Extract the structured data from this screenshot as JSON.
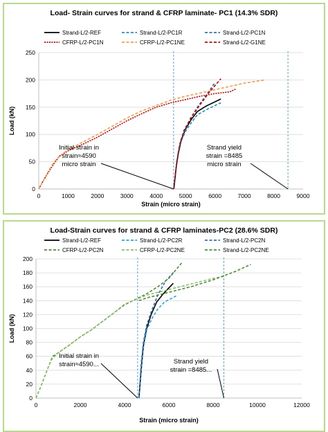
{
  "chart_data": [
    {
      "type": "line",
      "title": "Load- Strain curves  for strand & CFRP laminate- PC1 (14.3% SDR)",
      "xlabel": "Strain (micro strain)",
      "ylabel": "Load (kN)",
      "xlim": [
        0,
        9000
      ],
      "ylim": [
        0,
        250
      ],
      "xticks": [
        0,
        1000,
        2000,
        3000,
        4000,
        5000,
        6000,
        7000,
        8000,
        9000
      ],
      "yticks": [
        0,
        50,
        100,
        150,
        200,
        250
      ],
      "grid": "horizontal",
      "legend": "top, 3 columns",
      "series": [
        {
          "name": "Strand-L/2-REF",
          "color": "#000000",
          "dash": "solid",
          "x": [
            4600,
            4680,
            4750,
            4850,
            5000,
            5200,
            5400,
            5700,
            6200
          ],
          "y": [
            0,
            40,
            65,
            90,
            110,
            128,
            142,
            152,
            165
          ]
        },
        {
          "name": "Strand-L/2-PC1R",
          "color": "#1f8fc0",
          "dash": "dash",
          "x": [
            4600,
            4680,
            4750,
            4850,
            5000,
            5200,
            5400,
            5800,
            6200
          ],
          "y": [
            0,
            40,
            63,
            88,
            106,
            122,
            136,
            148,
            158
          ]
        },
        {
          "name": "Strand-L/2-PC1N",
          "color": "#2f6db5",
          "dash": "dash",
          "x": [
            4600,
            4700,
            4800,
            4950,
            5150,
            5400,
            5700,
            6000
          ],
          "y": [
            0,
            50,
            80,
            105,
            128,
            150,
            172,
            195
          ]
        },
        {
          "name": "CFRP-L/2-PC1N",
          "color": "#c00000",
          "dash": "dot",
          "x": [
            0,
            150,
            300,
            500,
            700,
            1000,
            1500,
            2000,
            2500,
            3000,
            3500,
            4000,
            4500,
            5000,
            5500,
            6000,
            6500,
            6700
          ],
          "y": [
            0,
            15,
            28,
            45,
            60,
            70,
            82,
            95,
            110,
            125,
            138,
            150,
            158,
            164,
            170,
            175,
            178,
            183
          ]
        },
        {
          "name": "CFRP-L/2-PC1NE",
          "color": "#f39c4a",
          "dash": "dash",
          "x": [
            0,
            150,
            300,
            500,
            700,
            1000,
            1500,
            2000,
            2500,
            3000,
            3500,
            4000,
            4500,
            5000,
            5500,
            6000,
            6500,
            7000,
            7700
          ],
          "y": [
            0,
            15,
            30,
            48,
            60,
            72,
            86,
            100,
            115,
            130,
            143,
            153,
            163,
            170,
            176,
            182,
            188,
            194,
            200
          ]
        },
        {
          "name": "Strand-L/2-G1NE",
          "color": "#c00000",
          "dash": "dash",
          "x": [
            4600,
            4700,
            4800,
            4950,
            5200,
            5500,
            5800,
            6200
          ],
          "y": [
            0,
            50,
            82,
            108,
            132,
            155,
            177,
            202
          ]
        }
      ],
      "vlines": [
        {
          "x": 4590,
          "color": "#5ea5d8"
        },
        {
          "x": 8485,
          "color": "#5ea5d8"
        }
      ],
      "annotations": [
        {
          "lines": [
            "Initial strain in",
            "strain≈4590",
            "micro strain"
          ],
          "arrow_to": [
            4590,
            0
          ]
        },
        {
          "lines": [
            "Strand yield",
            "strain =8485",
            "micro strain"
          ],
          "arrow_to": [
            8485,
            0
          ]
        }
      ]
    },
    {
      "type": "line",
      "title": "Load-Strain curves for strand & CFRP laminates-PC2 (28.6% SDR)",
      "xlabel": "Strain (micro strain)",
      "ylabel": "Load (kN)",
      "xlim": [
        0,
        12000
      ],
      "ylim": [
        0,
        200
      ],
      "xticks": [
        0,
        2000,
        4000,
        6000,
        8000,
        10000,
        12000
      ],
      "yticks": [
        0,
        20,
        40,
        60,
        80,
        100,
        120,
        140,
        160,
        180,
        200
      ],
      "grid": "horizontal",
      "legend": "top, 3 columns",
      "series": [
        {
          "name": "Strand-L/2-REF",
          "color": "#000000",
          "dash": "solid",
          "x": [
            4650,
            4750,
            4850,
            5000,
            5200,
            5450,
            5750,
            6200
          ],
          "y": [
            0,
            40,
            75,
            100,
            120,
            138,
            150,
            165
          ]
        },
        {
          "name": "Strand-L/2-PC2R",
          "color": "#29a3e0",
          "dash": "dash",
          "x": [
            4650,
            4750,
            4850,
            5000,
            5250,
            5500,
            5800,
            6400
          ],
          "y": [
            0,
            40,
            72,
            98,
            115,
            128,
            138,
            148
          ]
        },
        {
          "name": "Strand-L/2-PC2N",
          "color": "#2f6db5",
          "dash": "dash",
          "x": [
            4650,
            4750,
            4850,
            5000,
            5250,
            5500,
            5850,
            6250
          ],
          "y": [
            0,
            50,
            80,
            105,
            128,
            148,
            168,
            182
          ]
        },
        {
          "name": "CFRP-L/2-PC2N",
          "color": "#4f8a3a",
          "dash": "dash",
          "x": [
            0,
            200,
            500,
            750,
            1000,
            1500,
            2000,
            2500,
            3000,
            3500,
            4000,
            4500,
            5000,
            5500,
            6000,
            6600
          ],
          "y": [
            0,
            15,
            40,
            60,
            65,
            76,
            88,
            98,
            110,
            122,
            134,
            142,
            150,
            160,
            172,
            195
          ]
        },
        {
          "name": "CFRP-L/2-PC2NE",
          "color": "#8cbf6a",
          "dash": "dash",
          "x": [
            0,
            200,
            500,
            700,
            1000,
            1500,
            2000,
            2500,
            3000,
            3500,
            4000,
            5000,
            6000,
            7000,
            8000,
            8500
          ],
          "y": [
            0,
            15,
            40,
            55,
            65,
            76,
            88,
            98,
            110,
            122,
            135,
            148,
            156,
            164,
            172,
            175
          ]
        },
        {
          "name": "Strand-L/2-PC2NE",
          "color": "#4f8a3a",
          "dash": "dash",
          "x": [
            4650,
            5000,
            5500,
            6000,
            7000,
            8000,
            9000,
            9700
          ],
          "y": [
            140,
            144,
            148,
            152,
            160,
            170,
            182,
            192
          ]
        }
      ],
      "vlines": [
        {
          "x": 4590,
          "color": "#5ea5d8"
        },
        {
          "x": 8485,
          "color": "#5ea5d8"
        }
      ],
      "annotations": [
        {
          "lines": [
            "Initial strain in",
            "strain≈4590..."
          ],
          "arrow_to": [
            4590,
            0
          ]
        },
        {
          "lines": [
            "Strand yield",
            "strain =8485..."
          ],
          "arrow_to": [
            8485,
            0
          ]
        }
      ]
    }
  ]
}
